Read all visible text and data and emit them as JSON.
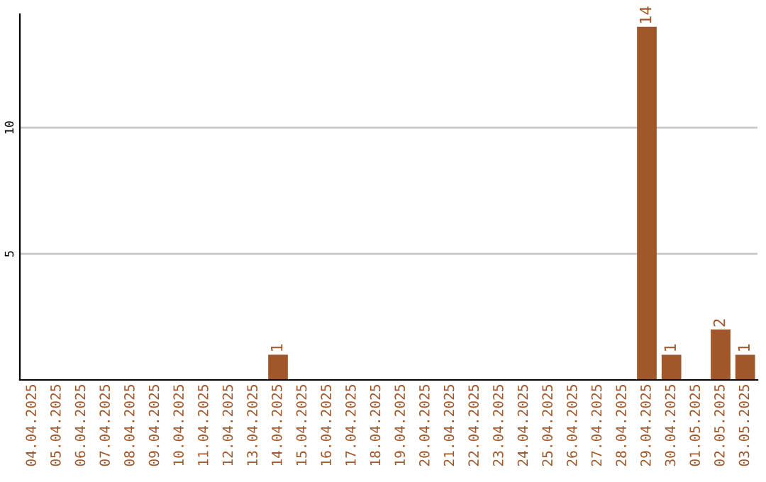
{
  "chart_data": {
    "type": "bar",
    "categories": [
      "04.04.2025",
      "05.04.2025",
      "06.04.2025",
      "07.04.2025",
      "08.04.2025",
      "09.04.2025",
      "10.04.2025",
      "11.04.2025",
      "12.04.2025",
      "13.04.2025",
      "14.04.2025",
      "15.04.2025",
      "16.04.2025",
      "17.04.2025",
      "18.04.2025",
      "19.04.2025",
      "20.04.2025",
      "21.04.2025",
      "22.04.2025",
      "23.04.2025",
      "24.04.2025",
      "25.04.2025",
      "26.04.2025",
      "27.04.2025",
      "28.04.2025",
      "29.04.2025",
      "30.04.2025",
      "01.05.2025",
      "02.05.2025",
      "03.05.2025"
    ],
    "values": [
      0,
      0,
      0,
      0,
      0,
      0,
      0,
      0,
      0,
      0,
      1,
      0,
      0,
      0,
      0,
      0,
      0,
      0,
      0,
      0,
      0,
      0,
      0,
      0,
      0,
      14,
      1,
      0,
      2,
      1
    ],
    "value_labels": [
      null,
      null,
      null,
      null,
      null,
      null,
      null,
      null,
      null,
      null,
      "1",
      null,
      null,
      null,
      null,
      null,
      null,
      null,
      null,
      null,
      null,
      null,
      null,
      null,
      null,
      "14",
      "1",
      null,
      "2",
      "1"
    ],
    "color": "#a0572a",
    "ylim": [
      0,
      14.5
    ],
    "yticks": [
      5,
      10
    ],
    "grid": "y",
    "legend": false
  }
}
